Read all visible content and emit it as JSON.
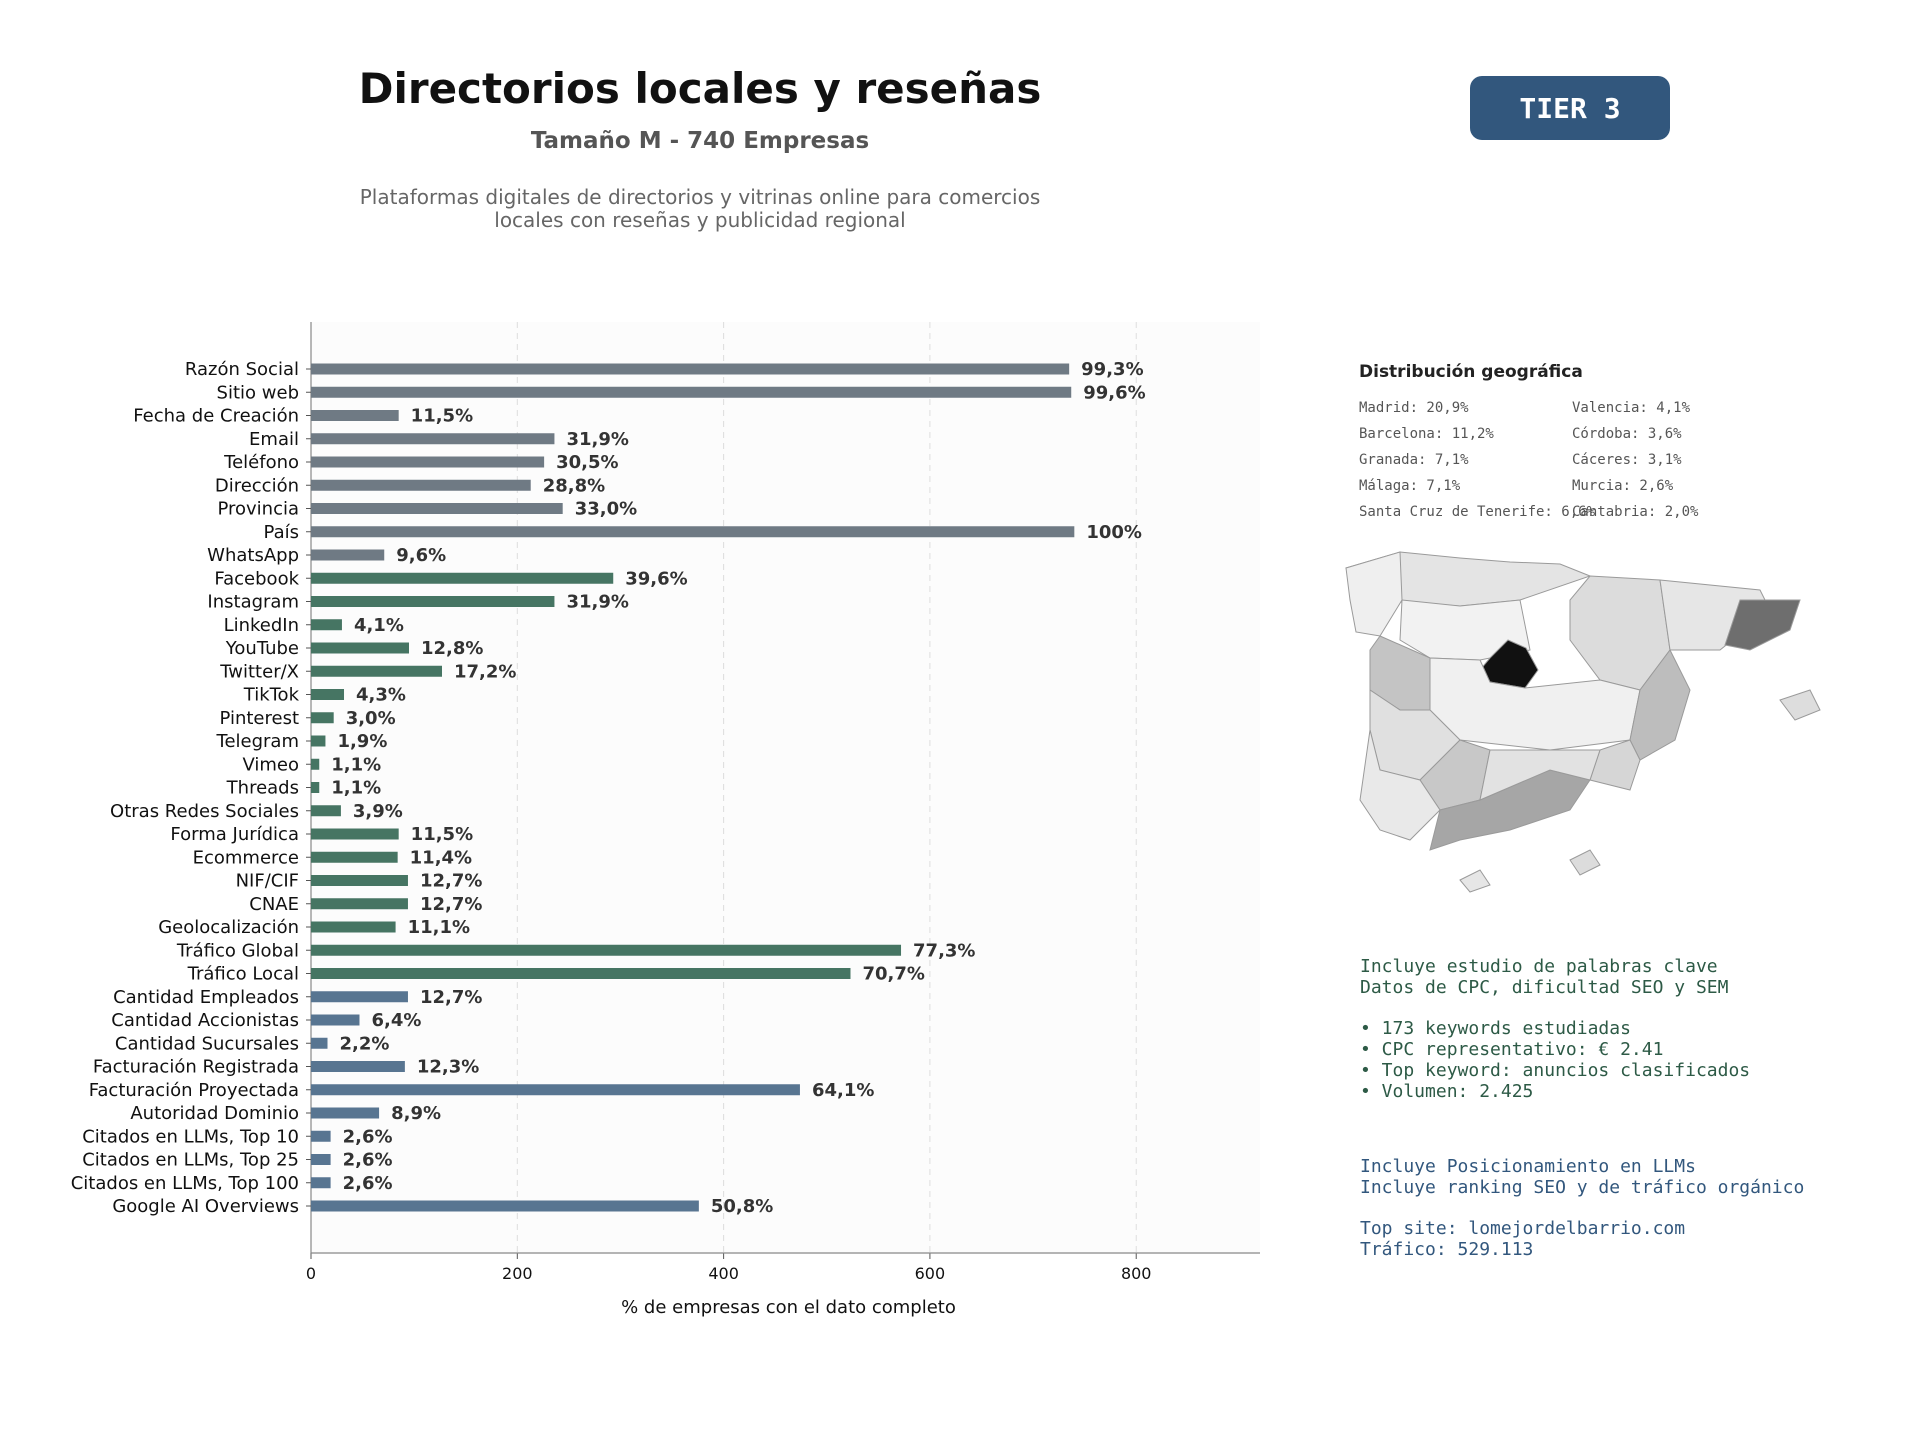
{
  "header": {
    "title": "Directorios locales y reseñas",
    "subtitle": "Tamaño M - 740 Empresas",
    "description_line1": "Plataformas digitales de directorios y vitrinas online para comercios",
    "description_line2": "locales con reseñas y publicidad regional",
    "tier": "TIER 3"
  },
  "colors": {
    "gray": "#6f7a84",
    "green": "#467563",
    "blue": "#587591",
    "tier_bg": "#32577d"
  },
  "chart_data": {
    "type": "bar",
    "orientation": "horizontal",
    "xlabel": "% de empresas con el dato completo",
    "xlim": [
      0,
      920
    ],
    "xticks": [
      0,
      200,
      400,
      600,
      800
    ],
    "grid": "vertical dashed",
    "categories": [
      "Razón Social",
      "Sitio web",
      "Fecha de Creación",
      "Email",
      "Teléfono",
      "Dirección",
      "Provincia",
      "País",
      "WhatsApp",
      "Facebook",
      "Instagram",
      "LinkedIn",
      "YouTube",
      "Twitter/X",
      "TikTok",
      "Pinterest",
      "Telegram",
      "Vimeo",
      "Threads",
      "Otras Redes Sociales",
      "Forma Jurídica",
      "Ecommerce",
      "NIF/CIF",
      "CNAE",
      "Geolocalización",
      "Tráfico Global",
      "Tráfico Local",
      "Cantidad Empleados",
      "Cantidad Accionistas",
      "Cantidad Sucursales",
      "Facturación Registrada",
      "Facturación Proyectada",
      "Autoridad Dominio",
      "Citados en LLMs, Top 10",
      "Citados en LLMs, Top 25",
      "Citados en LLMs, Top 100",
      "Google AI Overviews"
    ],
    "values": [
      735,
      737,
      85,
      236,
      226,
      213,
      244,
      740,
      71,
      293,
      236,
      30,
      95,
      127,
      32,
      22,
      14,
      8,
      8,
      29,
      85,
      84,
      94,
      94,
      82,
      572,
      523,
      94,
      47,
      16,
      91,
      474,
      66,
      19,
      19,
      19,
      376
    ],
    "labels": [
      "99,3%",
      "99,6%",
      "11,5%",
      "31,9%",
      "30,5%",
      "28,8%",
      "33,0%",
      "100%",
      "9,6%",
      "39,6%",
      "31,9%",
      "4,1%",
      "12,8%",
      "17,2%",
      "4,3%",
      "3,0%",
      "1,9%",
      "1,1%",
      "1,1%",
      "3,9%",
      "11,5%",
      "11,4%",
      "12,7%",
      "12,7%",
      "11,1%",
      "77,3%",
      "70,7%",
      "12,7%",
      "6,4%",
      "2,2%",
      "12,3%",
      "64,1%",
      "8,9%",
      "2,6%",
      "2,6%",
      "2,6%",
      "50,8%"
    ],
    "groups": [
      "gray",
      "gray",
      "gray",
      "gray",
      "gray",
      "gray",
      "gray",
      "gray",
      "gray",
      "green",
      "green",
      "green",
      "green",
      "green",
      "green",
      "green",
      "green",
      "green",
      "green",
      "green",
      "green",
      "green",
      "green",
      "green",
      "green",
      "green",
      "green",
      "blue",
      "blue",
      "blue",
      "blue",
      "blue",
      "blue",
      "blue",
      "blue",
      "blue",
      "blue"
    ]
  },
  "geo": {
    "title": "Distribución geográfica",
    "left": [
      "Madrid: 20,9%",
      "Barcelona: 11,2%",
      "Granada: 7,1%",
      "Málaga: 7,1%",
      "Santa Cruz de Tenerife: 6,6%"
    ],
    "right": [
      "Valencia: 4,1%",
      "Córdoba: 3,6%",
      "Cáceres: 3,1%",
      "Murcia: 2,6%",
      "Cantabria: 2,0%"
    ]
  },
  "keywords": {
    "line1": "Incluye estudio de palabras clave",
    "line2": "Datos de CPC, dificultad SEO y SEM",
    "b1": "• 173 keywords estudiadas",
    "b2": "• CPC representativo: € 2.41",
    "b3": "• Top keyword: anuncios clasificados",
    "b4": "• Volumen: 2.425"
  },
  "llm": {
    "line1": "Incluye Posicionamiento en LLMs",
    "line2": "Incluye ranking SEO y de tráfico orgánico",
    "line3": "Top site: lomejordelbarrio.com",
    "line4": "Tráfico: 529.113"
  }
}
